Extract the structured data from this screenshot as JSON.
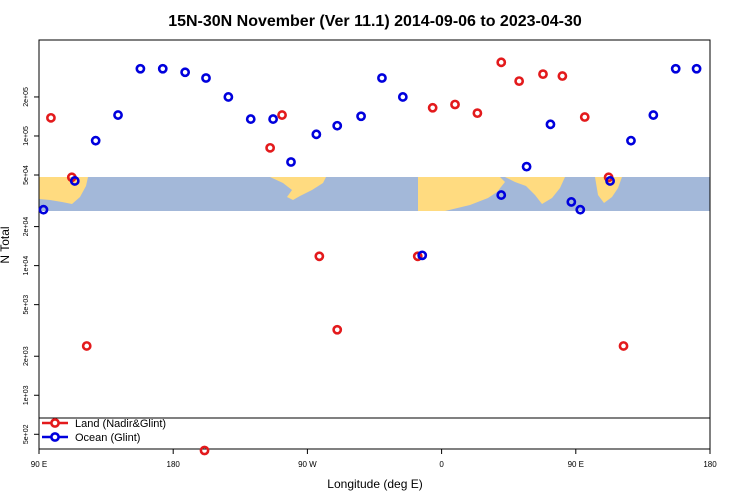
{
  "chart_data": {
    "type": "scatter",
    "title": "15N-30N November (Ver 11.1)   2014-09-06 to 2023-04-30",
    "xlabel": "Longitude (deg E)",
    "ylabel": "N Total",
    "x_ticks": [
      {
        "value": 90,
        "label": "90 E"
      },
      {
        "value": 180,
        "label": "180"
      },
      {
        "value": 270,
        "label": "90 W"
      },
      {
        "value": 360,
        "label": "0"
      },
      {
        "value": 450,
        "label": "90 E"
      },
      {
        "value": 540,
        "label": "180"
      }
    ],
    "xlim": [
      90,
      540
    ],
    "y_scale": "log",
    "y_ticks": [
      {
        "value": 500,
        "label": "5e+02"
      },
      {
        "value": 1000,
        "label": "1e+03"
      },
      {
        "value": 2000,
        "label": "2e+03"
      },
      {
        "value": 5000,
        "label": "5e+03"
      },
      {
        "value": 10000,
        "label": "1e+04"
      },
      {
        "value": 20000,
        "label": "2e+04"
      },
      {
        "value": 50000,
        "label": "5e+04"
      },
      {
        "value": 100000,
        "label": "1e+05"
      },
      {
        "value": 200000,
        "label": "2e+05"
      }
    ],
    "ylim": [
      385,
      550000
    ],
    "legend_placement": "bottom-left",
    "series": [
      {
        "name": "Land (Nadir&Glint)",
        "color": "#e31a1c",
        "points": [
          [
            98,
            138000
          ],
          [
            112,
            48000
          ],
          [
            122,
            2400
          ],
          [
            201,
            375
          ],
          [
            245,
            81000
          ],
          [
            253,
            145000
          ],
          [
            278,
            11800
          ],
          [
            290,
            3200
          ],
          [
            344,
            11800
          ],
          [
            354,
            165000
          ],
          [
            369,
            175000
          ],
          [
            384,
            150000
          ],
          [
            400,
            370000
          ],
          [
            412,
            265000
          ],
          [
            428,
            300000
          ],
          [
            441,
            290000
          ],
          [
            456,
            140000
          ],
          [
            472,
            48000
          ],
          [
            482,
            2400
          ]
        ]
      },
      {
        "name": "Ocean (Glint)",
        "color": "#0000dd",
        "points": [
          [
            93,
            27000
          ],
          [
            114,
            45000
          ],
          [
            128,
            92000
          ],
          [
            143,
            145000
          ],
          [
            158,
            330000
          ],
          [
            173,
            330000
          ],
          [
            188,
            310000
          ],
          [
            202,
            280000
          ],
          [
            217,
            200000
          ],
          [
            232,
            135000
          ],
          [
            247,
            135000
          ],
          [
            259,
            63000
          ],
          [
            276,
            103000
          ],
          [
            290,
            120000
          ],
          [
            306,
            142000
          ],
          [
            320,
            280000
          ],
          [
            334,
            200000
          ],
          [
            347,
            12000
          ],
          [
            400,
            35000
          ],
          [
            417,
            58000
          ],
          [
            433,
            123000
          ],
          [
            447,
            31000
          ],
          [
            453,
            27000
          ],
          [
            473,
            45000
          ],
          [
            487,
            92000
          ],
          [
            502,
            145000
          ],
          [
            517,
            330000
          ],
          [
            531,
            330000
          ]
        ]
      }
    ],
    "background_map": {
      "latitude_band": "15N-30N",
      "land_color": "#ffdb80",
      "ocean_color": "#a3b8d9"
    },
    "grid": false
  }
}
